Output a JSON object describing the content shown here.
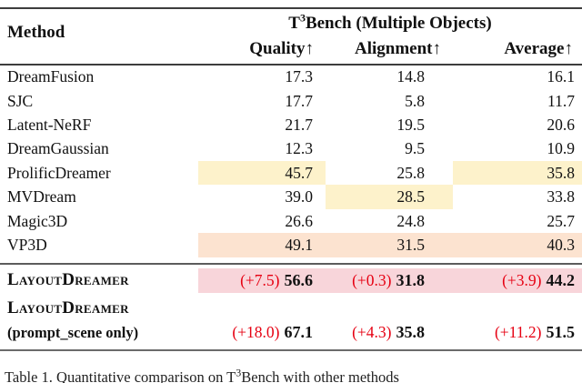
{
  "table": {
    "header": {
      "method": "Method",
      "group_prefix": "T",
      "group_sup": "3",
      "group_rest": "Bench (Multiple Objects)",
      "col_quality": "Quality↑",
      "col_alignment": "Alignment↑",
      "col_average": "Average↑"
    },
    "rows": [
      {
        "method": "DreamFusion",
        "quality": "17.3",
        "alignment": "14.8",
        "average": "16.1"
      },
      {
        "method": "SJC",
        "quality": "17.7",
        "alignment": "5.8",
        "average": "11.7"
      },
      {
        "method": "Latent-NeRF",
        "quality": "21.7",
        "alignment": "19.5",
        "average": "20.6"
      },
      {
        "method": "DreamGaussian",
        "quality": "12.3",
        "alignment": "9.5",
        "average": "10.9"
      },
      {
        "method": "ProlificDreamer",
        "quality": "45.7",
        "alignment": "25.8",
        "average": "35.8"
      },
      {
        "method": "MVDream",
        "quality": "39.0",
        "alignment": "28.5",
        "average": "33.8"
      },
      {
        "method": "Magic3D",
        "quality": "26.6",
        "alignment": "24.8",
        "average": "25.7"
      },
      {
        "method": "VP3D",
        "quality": "49.1",
        "alignment": "31.5",
        "average": "40.3"
      }
    ],
    "ours_rows": [
      {
        "method": "LayoutDreamer",
        "note": "",
        "quality_delta": "(+7.5)",
        "quality": "56.6",
        "alignment_delta": "(+0.3)",
        "alignment": "31.8",
        "average_delta": "(+3.9)",
        "average": "44.2"
      },
      {
        "method": "LayoutDreamer",
        "note": "(prompt_scene only)",
        "quality_delta": "(+18.0)",
        "quality": "67.1",
        "alignment_delta": "(+4.3)",
        "alignment": "35.8",
        "average_delta": "(+11.2)",
        "average": "51.5"
      }
    ]
  },
  "caption": {
    "prefix": "Table 1. Quantitative comparison on T",
    "sup": "3",
    "rest": "Bench with other methods"
  },
  "colors": {
    "best_baseline_yellow": "#fdf2cb",
    "second_highlight_orange": "#fce3d0",
    "ours_highlight_pink": "#f8d5da",
    "delta_red": "#e60012"
  },
  "chart_data": {
    "type": "table",
    "title": "T3Bench (Multiple Objects)",
    "columns": [
      "Method",
      "Quality",
      "Alignment",
      "Average"
    ],
    "rows": [
      [
        "DreamFusion",
        17.3,
        14.8,
        16.1
      ],
      [
        "SJC",
        17.7,
        5.8,
        11.7
      ],
      [
        "Latent-NeRF",
        21.7,
        19.5,
        20.6
      ],
      [
        "DreamGaussian",
        12.3,
        9.5,
        10.9
      ],
      [
        "ProlificDreamer",
        45.7,
        25.8,
        35.8
      ],
      [
        "MVDream",
        39.0,
        28.5,
        33.8
      ],
      [
        "Magic3D",
        26.6,
        24.8,
        25.7
      ],
      [
        "VP3D",
        49.1,
        31.5,
        40.3
      ],
      [
        "LayoutDreamer",
        56.6,
        31.8,
        44.2
      ],
      [
        "LayoutDreamer (prompt_scene only)",
        67.1,
        35.8,
        51.5
      ]
    ],
    "deltas_vs_best_baseline": {
      "LayoutDreamer": [
        7.5,
        0.3,
        3.9
      ],
      "LayoutDreamer (prompt_scene only)": [
        18.0,
        4.3,
        11.2
      ]
    }
  }
}
